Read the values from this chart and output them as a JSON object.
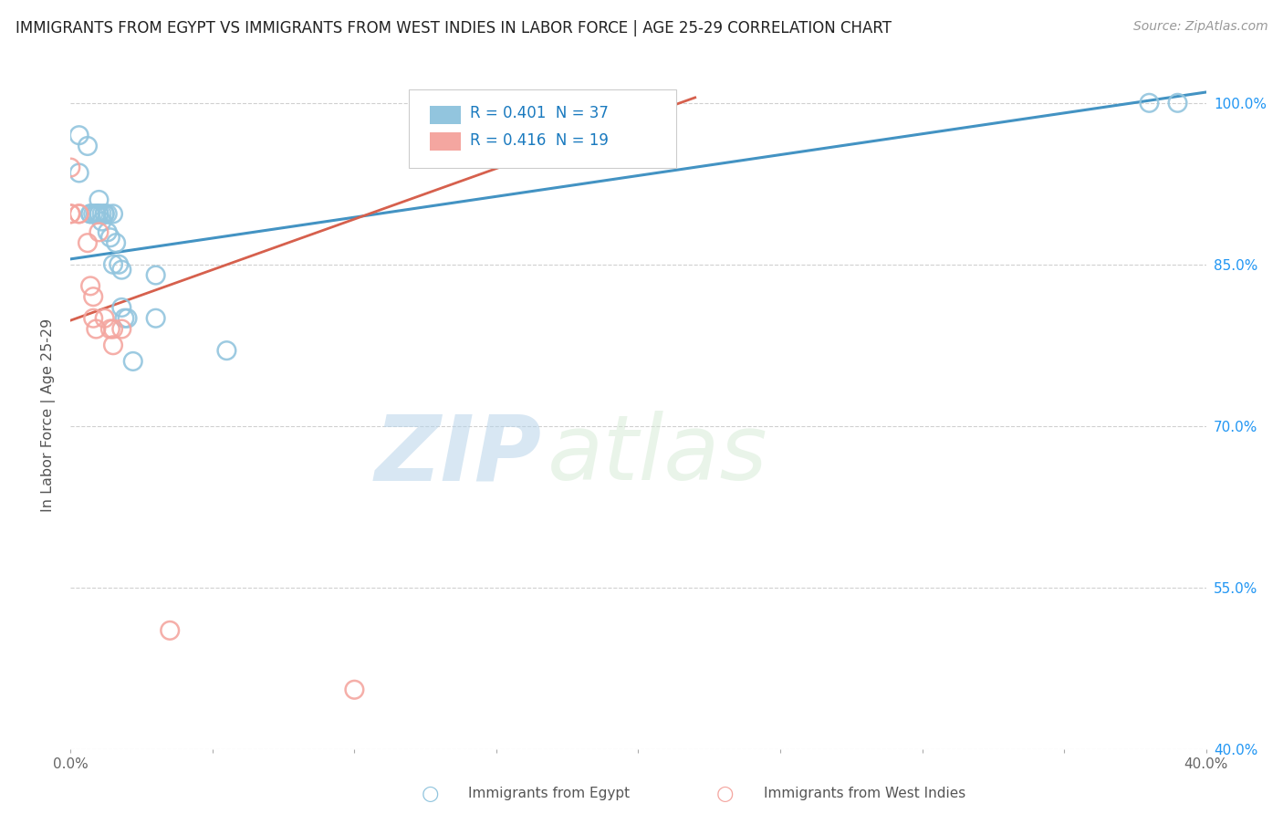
{
  "title": "IMMIGRANTS FROM EGYPT VS IMMIGRANTS FROM WEST INDIES IN LABOR FORCE | AGE 25-29 CORRELATION CHART",
  "source": "Source: ZipAtlas.com",
  "ylabel": "In Labor Force | Age 25-29",
  "xmin": 0.0,
  "xmax": 0.4,
  "ymin": 0.4,
  "ymax": 1.02,
  "yticks": [
    0.4,
    0.55,
    0.7,
    0.85,
    1.0
  ],
  "ytick_labels": [
    "40.0%",
    "55.0%",
    "70.0%",
    "85.0%",
    "100.0%"
  ],
  "watermark_zip": "ZIP",
  "watermark_atlas": "atlas",
  "blue_R": 0.401,
  "blue_N": 37,
  "pink_R": 0.416,
  "pink_N": 19,
  "blue_color": "#92c5de",
  "pink_color": "#f4a6a0",
  "line_blue": "#4393c3",
  "line_pink": "#d6604d",
  "legend_blue": "Immigrants from Egypt",
  "legend_pink": "Immigrants from West Indies",
  "blue_points_x": [
    0.003,
    0.003,
    0.006,
    0.007,
    0.007,
    0.008,
    0.009,
    0.009,
    0.009,
    0.01,
    0.01,
    0.01,
    0.011,
    0.011,
    0.012,
    0.012,
    0.013,
    0.013,
    0.014,
    0.015,
    0.015,
    0.016,
    0.017,
    0.018,
    0.018,
    0.019,
    0.02,
    0.022,
    0.03,
    0.03,
    0.055,
    0.14,
    0.14,
    0.15,
    0.2,
    0.38,
    0.39
  ],
  "blue_points_y": [
    0.97,
    0.935,
    0.96,
    0.897,
    0.897,
    0.897,
    0.897,
    0.897,
    0.897,
    0.897,
    0.897,
    0.91,
    0.89,
    0.897,
    0.897,
    0.897,
    0.88,
    0.897,
    0.875,
    0.85,
    0.897,
    0.87,
    0.85,
    0.81,
    0.845,
    0.8,
    0.8,
    0.76,
    0.84,
    0.8,
    0.77,
    1.0,
    1.0,
    1.0,
    1.0,
    1.0,
    1.0
  ],
  "pink_points_x": [
    0.0,
    0.0,
    0.0,
    0.003,
    0.003,
    0.006,
    0.007,
    0.008,
    0.008,
    0.009,
    0.01,
    0.012,
    0.014,
    0.015,
    0.015,
    0.018,
    0.035,
    0.1,
    0.21
  ],
  "pink_points_y": [
    0.897,
    0.897,
    0.94,
    0.897,
    0.897,
    0.87,
    0.83,
    0.82,
    0.8,
    0.79,
    0.88,
    0.8,
    0.79,
    0.79,
    0.775,
    0.79,
    0.51,
    0.455,
    0.99
  ],
  "blue_trend": [
    0.0,
    0.4,
    0.855,
    1.01
  ],
  "pink_trend": [
    0.0,
    0.22,
    0.798,
    1.005
  ]
}
